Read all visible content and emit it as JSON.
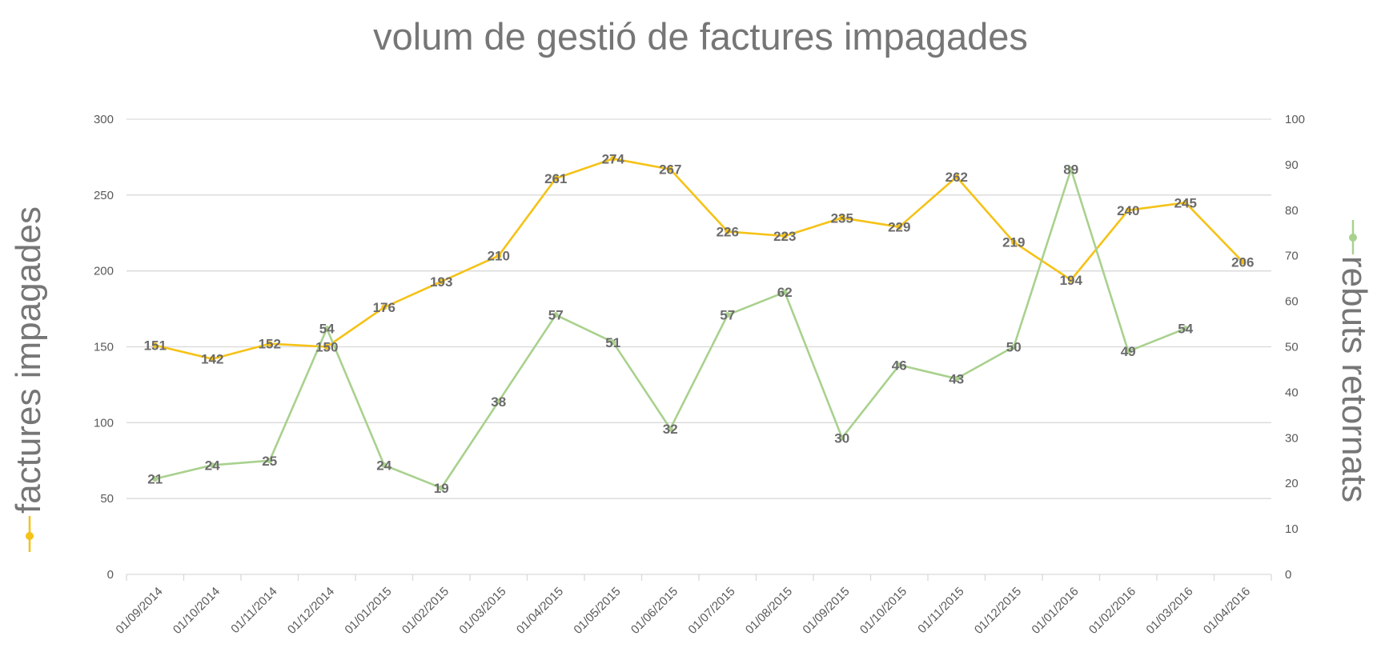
{
  "chart_data": {
    "type": "line",
    "title": "volum de gestió de factures impagades",
    "ylabel": "factures impagades",
    "y2label": "rebuts retornats",
    "ylim": [
      0,
      300
    ],
    "y2lim": [
      0,
      100
    ],
    "yticks": [
      "0",
      "50",
      "100",
      "150",
      "200",
      "250",
      "300"
    ],
    "y2ticks": [
      "0",
      "10",
      "20",
      "30",
      "40",
      "50",
      "60",
      "70",
      "80",
      "90",
      "100"
    ],
    "grid": true,
    "x": [
      "01/09/2014",
      "01/10/2014",
      "01/11/2014",
      "01/12/2014",
      "01/01/2015",
      "01/02/2015",
      "01/03/2015",
      "01/04/2015",
      "01/05/2015",
      "01/06/2015",
      "01/07/2015",
      "01/08/2015",
      "01/09/2015",
      "01/10/2015",
      "01/11/2015",
      "01/12/2015",
      "01/01/2016",
      "01/02/2016",
      "01/03/2016",
      "01/04/2016"
    ],
    "series": [
      {
        "name": "factures impagades",
        "axis": "left",
        "color": "#f5c217",
        "values": [
          151,
          142,
          152,
          150,
          176,
          193,
          210,
          261,
          274,
          267,
          226,
          223,
          235,
          229,
          262,
          219,
          194,
          240,
          245,
          206
        ]
      },
      {
        "name": "rebuts retornats",
        "axis": "right",
        "color": "#a9d18e",
        "values": [
          21,
          24,
          25,
          54,
          24,
          19,
          38,
          57,
          51,
          32,
          57,
          62,
          30,
          46,
          43,
          50,
          89,
          49,
          54,
          null
        ]
      }
    ]
  }
}
